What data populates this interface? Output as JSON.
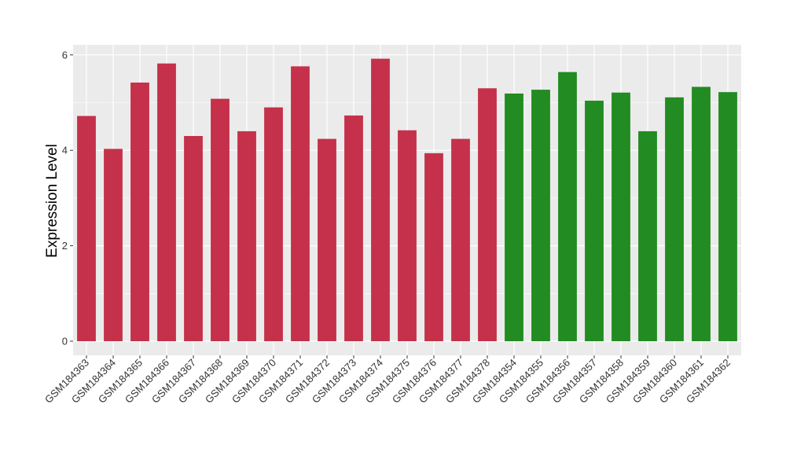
{
  "chart_data": {
    "type": "bar",
    "title": "",
    "xlabel": "",
    "ylabel": "Expression Level",
    "ylim": [
      0,
      6.2
    ],
    "yticks": [
      0,
      2,
      4,
      6
    ],
    "grid": true,
    "legend": "none",
    "categories": [
      "GSM184363",
      "GSM184364",
      "GSM184365",
      "GSM184366",
      "GSM184367",
      "GSM184368",
      "GSM184369",
      "GSM184370",
      "GSM184371",
      "GSM184372",
      "GSM184373",
      "GSM184374",
      "GSM184375",
      "GSM184376",
      "GSM184377",
      "GSM184378",
      "GSM184354",
      "GSM184355",
      "GSM184356",
      "GSM184357",
      "GSM184358",
      "GSM184359",
      "GSM184360",
      "GSM184361",
      "GSM184362"
    ],
    "values": [
      4.72,
      4.03,
      5.42,
      5.82,
      4.3,
      5.08,
      4.4,
      4.9,
      5.76,
      4.24,
      4.73,
      5.92,
      4.42,
      3.94,
      4.24,
      5.3,
      5.19,
      5.27,
      5.64,
      5.04,
      5.21,
      4.4,
      5.11,
      5.33,
      5.22
    ],
    "groups": [
      0,
      0,
      0,
      0,
      0,
      0,
      0,
      0,
      0,
      0,
      0,
      0,
      0,
      0,
      0,
      0,
      1,
      1,
      1,
      1,
      1,
      1,
      1,
      1,
      1
    ],
    "colors": [
      "#c5314a",
      "#228b22"
    ],
    "panel_background": "#ebebeb",
    "grid_color": "#ffffff"
  }
}
